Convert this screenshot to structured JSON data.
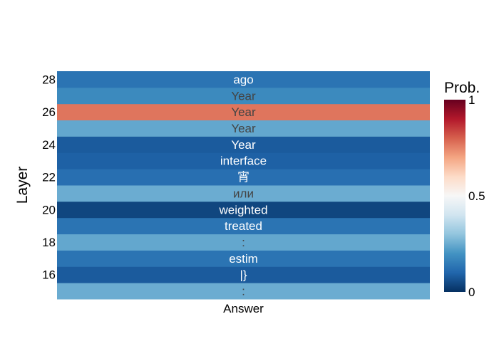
{
  "chart_data": {
    "type": "heatmap",
    "title": "",
    "xlabel": "",
    "ylabel": "Layer",
    "x_categories": [
      "Answer"
    ],
    "y_ticks": [
      16,
      18,
      20,
      22,
      24,
      26,
      28
    ],
    "cells": [
      {
        "layer": 15,
        "token": ":",
        "prob": 0.25
      },
      {
        "layer": 16,
        "token": "|}",
        "prob": 0.08
      },
      {
        "layer": 17,
        "token": "estim",
        "prob": 0.13
      },
      {
        "layer": 18,
        "token": ":",
        "prob": 0.24
      },
      {
        "layer": 19,
        "token": "treated",
        "prob": 0.13
      },
      {
        "layer": 20,
        "token": "weighted",
        "prob": 0.04
      },
      {
        "layer": 21,
        "token": "или",
        "prob": 0.25
      },
      {
        "layer": 22,
        "token": "宵",
        "prob": 0.12
      },
      {
        "layer": 23,
        "token": "interface",
        "prob": 0.09
      },
      {
        "layer": 24,
        "token": "Year",
        "prob": 0.08
      },
      {
        "layer": 25,
        "token": "Year",
        "prob": 0.24
      },
      {
        "layer": 26,
        "token": "Year",
        "prob": 0.77
      },
      {
        "layer": 27,
        "token": "Year",
        "prob": 0.18
      },
      {
        "layer": 28,
        "token": "ago",
        "prob": 0.13
      }
    ],
    "colorbar": {
      "title": "Prob.",
      "range": [
        0,
        1
      ],
      "tick_labels": [
        "0",
        "0.5",
        "1"
      ],
      "colorscale": [
        "#053061",
        "#2166ac",
        "#4393c3",
        "#92c5de",
        "#d1e5f0",
        "#f7f7f7",
        "#fddbc7",
        "#f4a582",
        "#d6604d",
        "#b2182b",
        "#67001f"
      ]
    }
  }
}
